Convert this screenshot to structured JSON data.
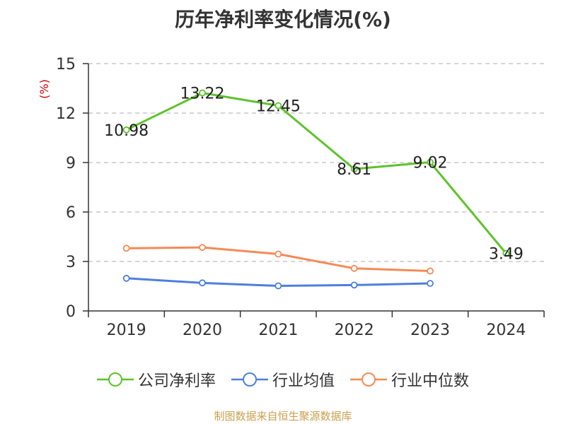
{
  "title": "历年净利率变化情况(%)",
  "source_note": "制图数据来自恒生聚源数据库",
  "chart_data": {
    "type": "line",
    "title": "历年净利率变化情况(%)",
    "ylabel": "(%)",
    "xlabel": "",
    "categories": [
      "2019",
      "2020",
      "2021",
      "2022",
      "2023",
      "2024"
    ],
    "ylim": [
      0,
      15
    ],
    "yticks": [
      0,
      3,
      6,
      9,
      12,
      15
    ],
    "grid": true,
    "legend_position": "bottom",
    "series": [
      {
        "name": "公司净利率",
        "color": "#5dc22b",
        "values": [
          10.98,
          13.22,
          12.45,
          8.61,
          9.02,
          3.49
        ],
        "data_labels": [
          "10.98",
          "13.22",
          "12.45",
          "8.61",
          "9.02",
          "3.49"
        ]
      },
      {
        "name": "行业均值",
        "color": "#4e7fdc",
        "values": [
          1.98,
          1.7,
          1.52,
          1.57,
          1.67,
          null
        ]
      },
      {
        "name": "行业中位数",
        "color": "#f58a56",
        "values": [
          3.8,
          3.85,
          3.45,
          2.58,
          2.42,
          null
        ]
      }
    ]
  }
}
